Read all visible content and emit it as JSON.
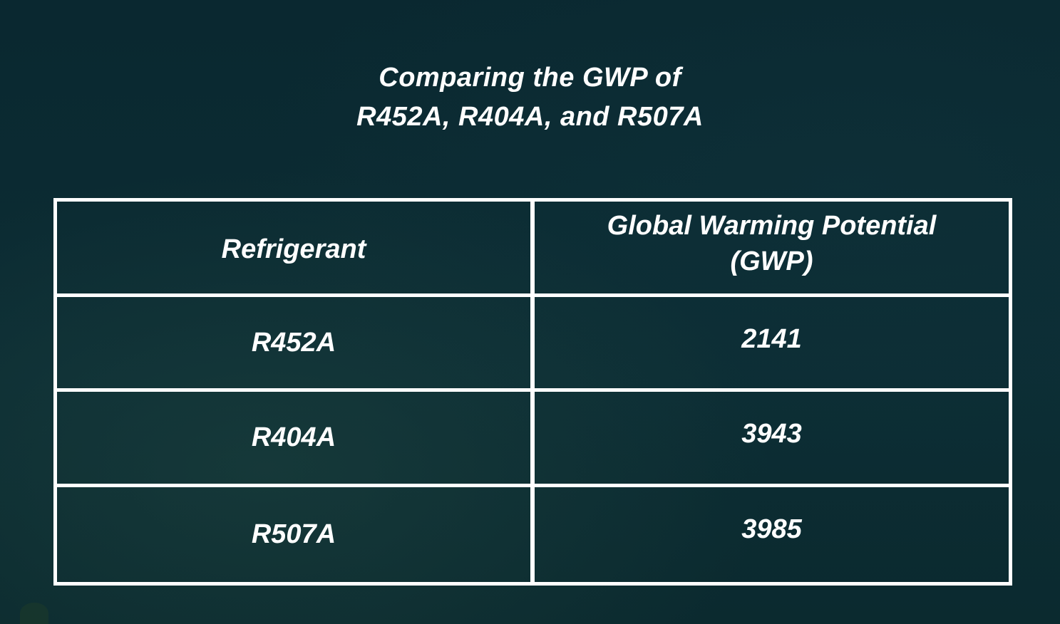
{
  "title": {
    "line1": "Comparing the GWP of",
    "line2": "R452A, R404A, and R507A"
  },
  "table": {
    "headers": {
      "refrigerant": "Refrigerant",
      "gwp_line1": "Global Warming Potential",
      "gwp_line2": "(GWP)"
    },
    "rows": [
      {
        "refrigerant": "R452A",
        "gwp": "2141"
      },
      {
        "refrigerant": "R404A",
        "gwp": "3943"
      },
      {
        "refrigerant": "R507A",
        "gwp": "3985"
      }
    ]
  },
  "colors": {
    "background": "#0b2a33",
    "text": "#ffffff",
    "border": "#ffffff"
  }
}
